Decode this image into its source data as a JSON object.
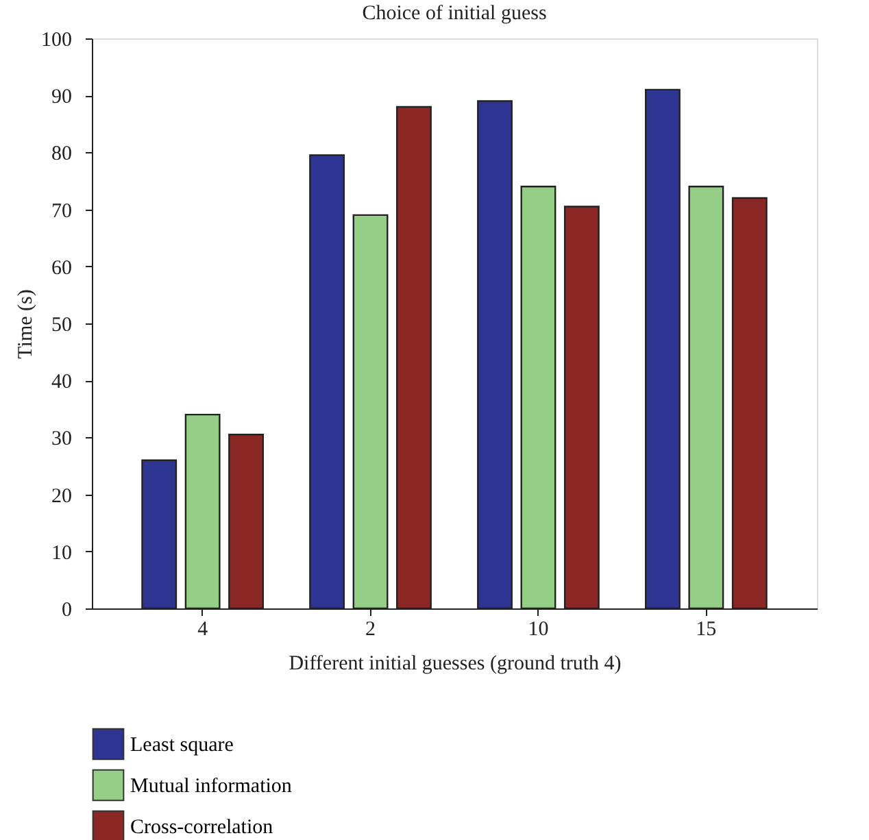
{
  "chart_data": {
    "type": "bar",
    "title": "Choice of initial guess",
    "xlabel": "Different initial guesses (ground truth 4)",
    "ylabel": "Time (s)",
    "categories": [
      "4",
      "2",
      "10",
      "15"
    ],
    "series": [
      {
        "name": "Least square",
        "color": "#2e3491",
        "values": [
          26,
          79.5,
          89,
          91
        ]
      },
      {
        "name": "Mutual information",
        "color": "#95ce86",
        "values": [
          34,
          69,
          74,
          74
        ]
      },
      {
        "name": "Cross-correlation",
        "color": "#8b2826",
        "values": [
          30.5,
          88,
          70.5,
          72
        ]
      }
    ],
    "ylim": [
      0,
      100
    ],
    "yticks": [
      0,
      10,
      20,
      30,
      40,
      50,
      60,
      70,
      80,
      90,
      100
    ],
    "grid": false,
    "legend": "bottom left"
  }
}
